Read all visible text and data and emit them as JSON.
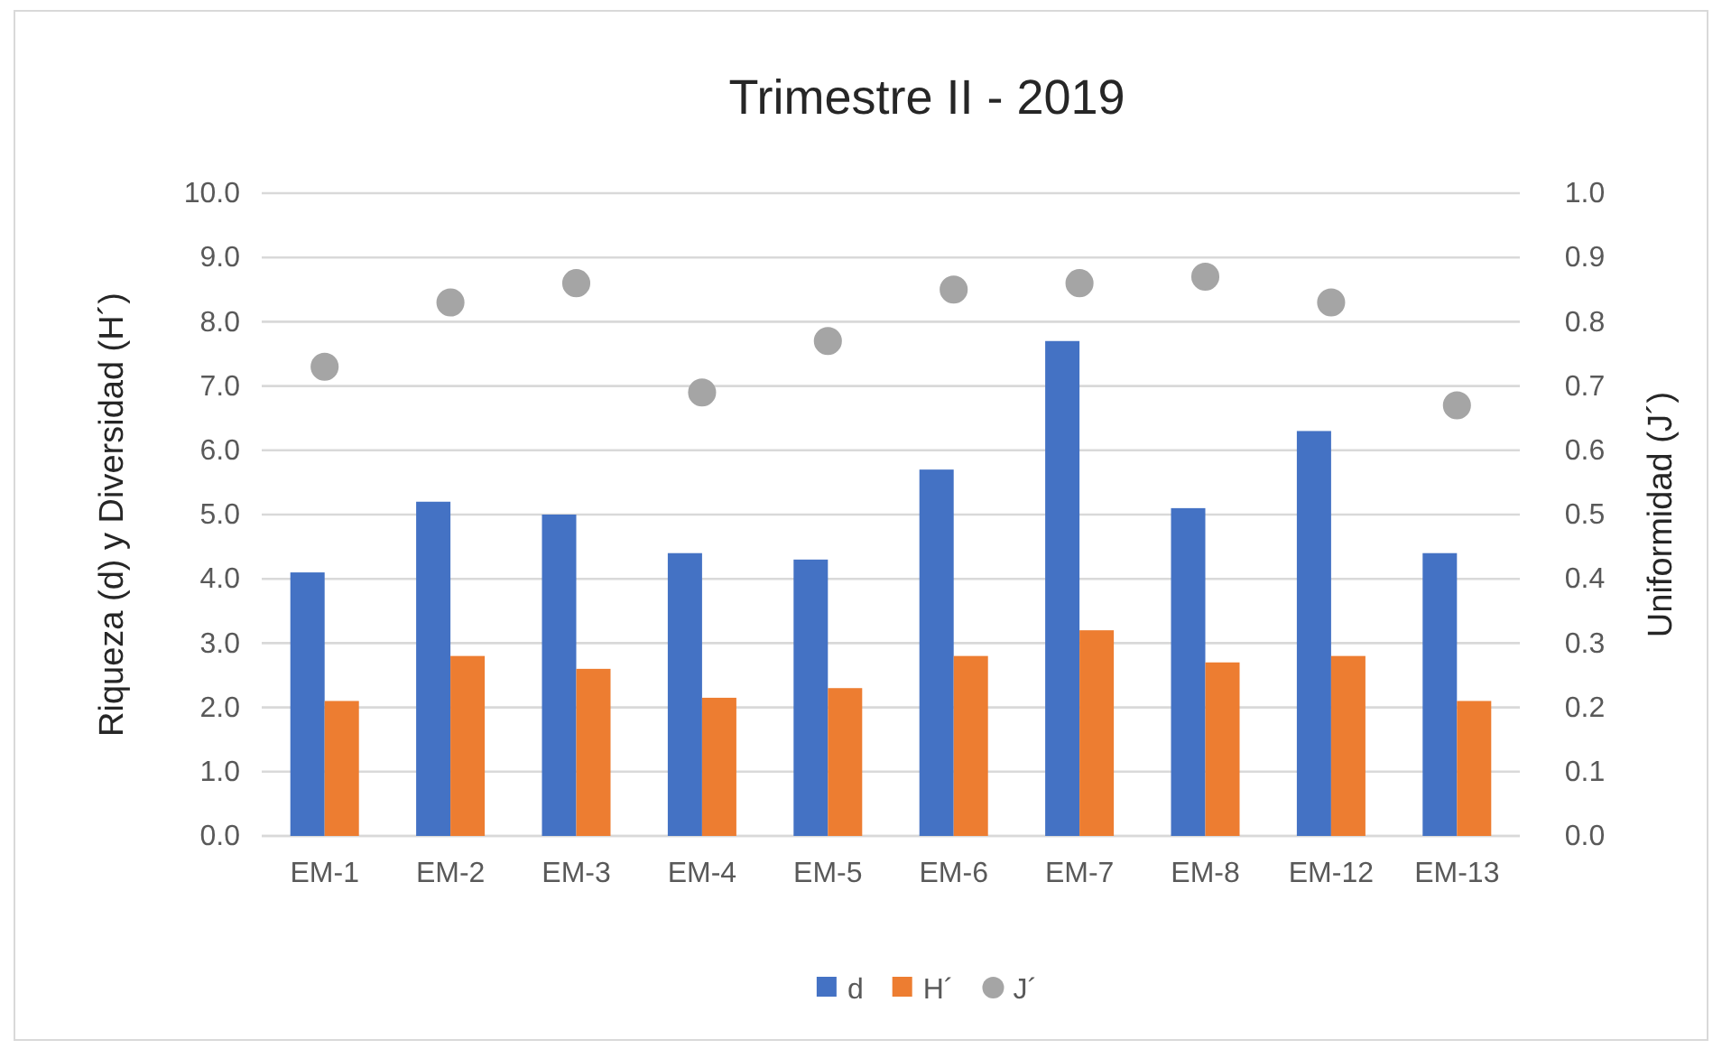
{
  "chart_data": {
    "type": "bar",
    "title": "Trimestre II - 2019",
    "ylabel": "Riqueza (d) y Diversidad (H´)",
    "y2label": "Uniformidad  (J´)",
    "categories": [
      "EM-1",
      "EM-2",
      "EM-3",
      "EM-4",
      "EM-5",
      "EM-6",
      "EM-7",
      "EM-8",
      "EM-12",
      "EM-13"
    ],
    "series": [
      {
        "name": "d",
        "color": "#4472c4",
        "values": [
          4.1,
          5.2,
          5.0,
          4.4,
          4.3,
          5.7,
          7.7,
          5.1,
          6.3,
          4.4
        ]
      },
      {
        "name": "H´",
        "color": "#ed7d31",
        "values": [
          2.1,
          2.8,
          2.6,
          2.15,
          2.3,
          2.8,
          3.2,
          2.7,
          2.8,
          2.1
        ]
      },
      {
        "name": "J´",
        "type": "scatter",
        "axis": "y2",
        "marker": "circle",
        "color": "#a5a5a5",
        "values": [
          0.73,
          0.83,
          0.86,
          0.69,
          0.77,
          0.85,
          0.86,
          0.87,
          0.83,
          0.67
        ]
      }
    ],
    "ylim": [
      0,
      10
    ],
    "yticks": [
      {
        "value": 0,
        "label": "0.0"
      },
      {
        "value": 1,
        "label": "1.0"
      },
      {
        "value": 2,
        "label": "2.0"
      },
      {
        "value": 3,
        "label": "3.0"
      },
      {
        "value": 4,
        "label": "4.0"
      },
      {
        "value": 5,
        "label": "5.0"
      },
      {
        "value": 6,
        "label": "6.0"
      },
      {
        "value": 7,
        "label": "7.0"
      },
      {
        "value": 8,
        "label": "8.0"
      },
      {
        "value": 9,
        "label": "9.0"
      },
      {
        "value": 10,
        "label": "10.0"
      }
    ],
    "y2lim": [
      0,
      1
    ],
    "y2ticks": [
      {
        "value": 0,
        "label": "0.0"
      },
      {
        "value": 0.1,
        "label": "0.1"
      },
      {
        "value": 0.2,
        "label": "0.2"
      },
      {
        "value": 0.3,
        "label": "0.3"
      },
      {
        "value": 0.4,
        "label": "0.4"
      },
      {
        "value": 0.5,
        "label": "0.5"
      },
      {
        "value": 0.6,
        "label": "0.6"
      },
      {
        "value": 0.7,
        "label": "0.7"
      },
      {
        "value": 0.8,
        "label": "0.8"
      },
      {
        "value": 0.9,
        "label": "0.9"
      },
      {
        "value": 1,
        "label": "1.0"
      }
    ],
    "grid": "y",
    "legend": "bottom"
  }
}
